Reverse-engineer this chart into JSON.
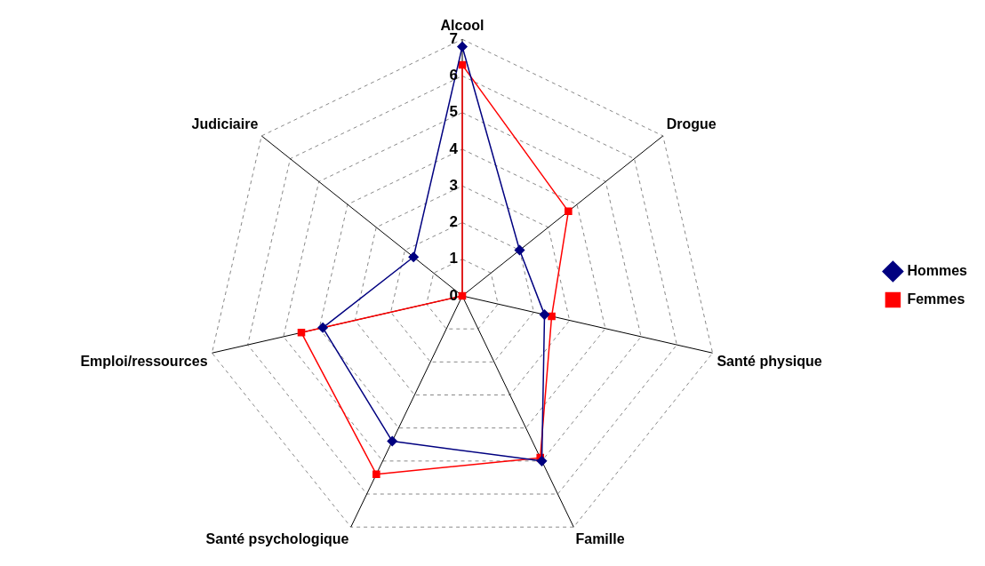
{
  "chart_data": {
    "type": "radar",
    "categories": [
      "Alcool",
      "Drogue",
      "Santé physique",
      "Famille",
      "Santé psychologique",
      "Emploi/ressources",
      "Judiciaire"
    ],
    "series": [
      {
        "name": "Hommes",
        "color": "#000080",
        "marker": "diamond",
        "values": [
          6.8,
          2.0,
          2.3,
          5.0,
          4.4,
          3.9,
          1.7
        ]
      },
      {
        "name": "Femmes",
        "color": "#ff0000",
        "marker": "square",
        "values": [
          6.3,
          3.7,
          2.5,
          4.9,
          5.4,
          4.5,
          0
        ]
      }
    ],
    "ylim": [
      0,
      7
    ],
    "yticks": [
      0,
      1,
      2,
      3,
      4,
      5,
      6,
      7
    ],
    "grid": true,
    "legend": "right"
  }
}
